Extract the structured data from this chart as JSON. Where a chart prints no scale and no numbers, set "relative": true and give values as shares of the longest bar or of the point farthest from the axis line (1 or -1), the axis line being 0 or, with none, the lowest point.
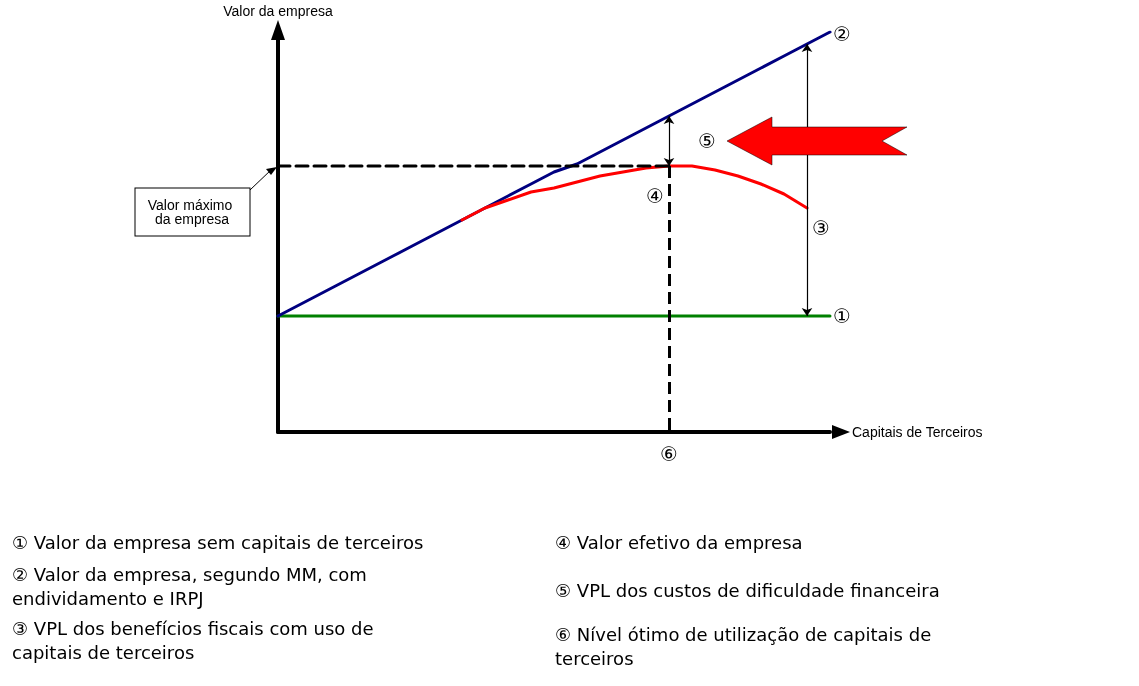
{
  "chart_data": {
    "type": "line",
    "relative": true,
    "xlabel": "Capitais de Terceiros",
    "ylabel": "Valor da empresa",
    "grid": false,
    "marker": "none",
    "categories": [
      null,
      null,
      null,
      null,
      null,
      null,
      null,
      null,
      null,
      null,
      null,
      null,
      null,
      null,
      null,
      null,
      null,
      null,
      null,
      null,
      null,
      null,
      null,
      null,
      null
    ],
    "series": [
      {
        "color": "#008000",
        "values": [
          0.29,
          0.29,
          0.29,
          0.29,
          0.29,
          0.29,
          0.29,
          0.29,
          0.29,
          0.29,
          0.29,
          0.29,
          0.29,
          0.29,
          0.29,
          0.29,
          0.29,
          0.29,
          0.29,
          0.29,
          0.29,
          0.29,
          0.29,
          0.29,
          0.29
        ]
      },
      {
        "color": "#000080",
        "values": [
          0.29,
          0.32,
          0.35,
          0.38,
          0.41,
          0.44,
          0.47,
          0.5,
          0.53,
          0.56,
          0.59,
          0.62,
          0.65,
          0.67,
          0.7,
          0.73,
          0.76,
          0.79,
          0.82,
          0.85,
          0.88,
          0.91,
          0.94,
          0.97,
          1.0
        ]
      },
      {
        "color": "#ff0000",
        "values": [
          null,
          null,
          null,
          null,
          null,
          null,
          null,
          null,
          0.53,
          0.56,
          0.58,
          0.6,
          0.61,
          0.625,
          0.64,
          0.65,
          0.66,
          0.665,
          0.665,
          0.655,
          0.64,
          0.62,
          0.595,
          0.56,
          null
        ]
      },
      {
        "color": "#000000",
        "line_style": "dashed",
        "values": [
          0.665,
          0.665,
          0.665,
          0.665,
          0.665,
          0.665,
          0.665,
          0.665,
          0.665,
          0.665,
          0.665,
          0.665,
          0.665,
          0.665,
          0.665,
          0.665,
          0.665,
          0.665,
          null,
          null,
          null,
          null,
          null,
          null,
          null
        ]
      }
    ],
    "annotations": [
      "Valor máximo da empresa",
      "①",
      "②",
      "③",
      "④",
      "⑤",
      "⑥",
      "① Valor da empresa sem capitais de terceiros",
      "② Valor da empresa, segundo MM, com endividamento e IRPJ",
      "③ VPL dos benefícios fiscais com uso de capitais de terceiros",
      "④ Valor efetivo da empresa",
      "⑤ VPL dos custos de dificuldade financeira",
      "⑥ Nível ótimo de utilização de capitais de terceiros"
    ]
  }
}
